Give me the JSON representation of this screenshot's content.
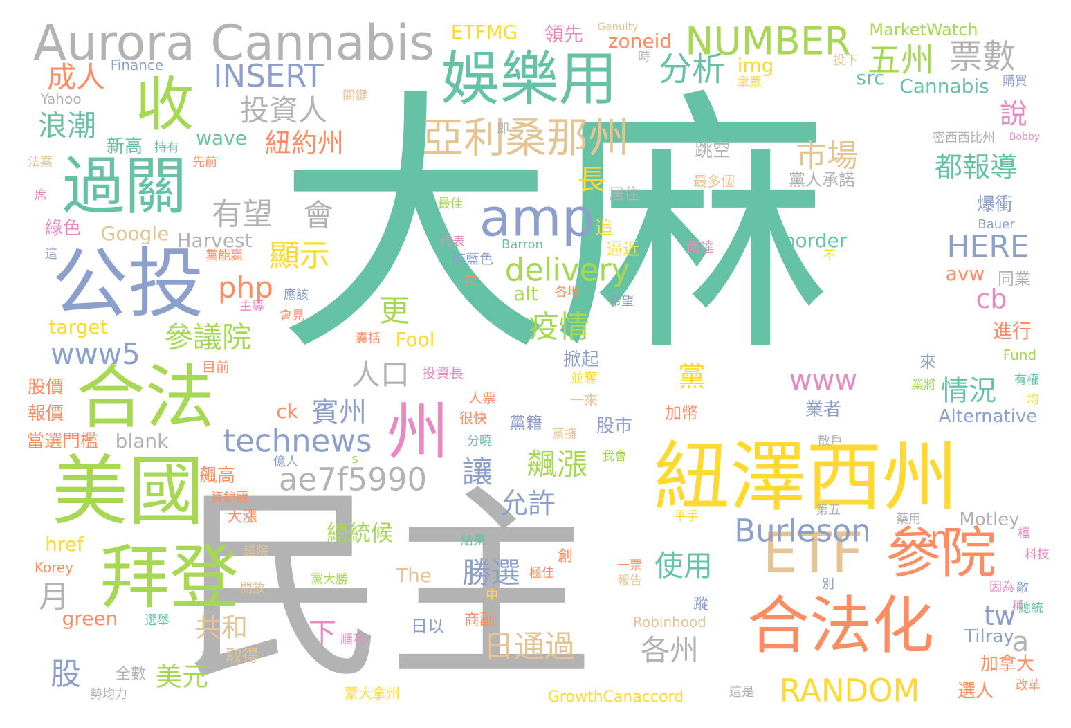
{
  "palette": {
    "teal": "#66c2a5",
    "gray": "#b3b3b3",
    "orange": "#fc8d62",
    "periwinkle": "#8da0cb",
    "green": "#a6d854",
    "yellow": "#ffd92f",
    "tan": "#e5c494",
    "pink": "#e78ac3"
  },
  "words": [
    {
      "text": "大麻",
      "color": "teal"
    },
    {
      "text": "民主",
      "color": "gray"
    },
    {
      "text": "紐澤西州",
      "color": "yellow"
    },
    {
      "text": "合法化",
      "color": "orange"
    },
    {
      "text": "美國",
      "color": "green"
    },
    {
      "text": "公投",
      "color": "periwinkle"
    },
    {
      "text": "拜登",
      "color": "green"
    },
    {
      "text": "合法",
      "color": "green"
    },
    {
      "text": "過關",
      "color": "teal"
    },
    {
      "text": "娛樂用",
      "color": "teal"
    },
    {
      "text": "收",
      "color": "green"
    },
    {
      "text": "amp",
      "color": "periwinkle"
    },
    {
      "text": "州",
      "color": "pink"
    },
    {
      "text": "參院",
      "color": "orange"
    },
    {
      "text": "ETF",
      "color": "tan"
    },
    {
      "text": "Aurora Cannabis",
      "color": "gray"
    },
    {
      "text": "亞利桑那州",
      "color": "tan"
    },
    {
      "text": "NUMBER",
      "color": "green"
    },
    {
      "text": "ae7f5990",
      "color": "gray"
    },
    {
      "text": "technews",
      "color": "periwinkle"
    },
    {
      "text": "delivery",
      "color": "green"
    },
    {
      "text": "Burleson",
      "color": "periwinkle"
    },
    {
      "text": "RANDOM",
      "color": "yellow"
    },
    {
      "text": "INSERT",
      "color": "periwinkle"
    },
    {
      "text": "五州",
      "color": "green"
    },
    {
      "text": "票數",
      "color": "gray"
    },
    {
      "text": "分析",
      "color": "teal"
    },
    {
      "text": "成人",
      "color": "orange"
    },
    {
      "text": "浪潮",
      "color": "teal"
    },
    {
      "text": "投資人",
      "color": "gray"
    },
    {
      "text": "紐約州",
      "color": "orange"
    },
    {
      "text": "市場",
      "color": "tan"
    },
    {
      "text": "都報導",
      "color": "teal"
    },
    {
      "text": "說",
      "color": "pink"
    },
    {
      "text": "長",
      "color": "yellow"
    },
    {
      "text": "有望",
      "color": "gray"
    },
    {
      "text": "會",
      "color": "gray"
    },
    {
      "text": "顯示",
      "color": "yellow"
    },
    {
      "text": "php",
      "color": "orange"
    },
    {
      "text": "參議院",
      "color": "green"
    },
    {
      "text": "www5",
      "color": "periwinkle"
    },
    {
      "text": "更",
      "color": "green"
    },
    {
      "text": "疫情",
      "color": "green"
    },
    {
      "text": "HERE",
      "color": "periwinkle"
    },
    {
      "text": "cb",
      "color": "pink"
    },
    {
      "text": "人口",
      "color": "gray"
    },
    {
      "text": "黨",
      "color": "yellow"
    },
    {
      "text": "www",
      "color": "pink"
    },
    {
      "text": "情況",
      "color": "teal"
    },
    {
      "text": "賓州",
      "color": "periwinkle"
    },
    {
      "text": "飆漲",
      "color": "green"
    },
    {
      "text": "讓",
      "color": "periwinkle"
    },
    {
      "text": "允許",
      "color": "periwinkle"
    },
    {
      "text": "使用",
      "color": "teal"
    },
    {
      "text": "勝選",
      "color": "periwinkle"
    },
    {
      "text": "日通過",
      "color": "tan"
    },
    {
      "text": "各州",
      "color": "gray"
    },
    {
      "text": "共和",
      "color": "tan"
    },
    {
      "text": "美元",
      "color": "green"
    },
    {
      "text": "股",
      "color": "periwinkle"
    },
    {
      "text": "月",
      "color": "gray"
    },
    {
      "text": "n",
      "color": "orange"
    },
    {
      "text": "a",
      "color": "gray"
    },
    {
      "text": "tw",
      "color": "periwinkle"
    },
    {
      "text": "下",
      "color": "pink"
    },
    {
      "text": "總統候",
      "color": "green"
    },
    {
      "text": "ETFMG",
      "color": "yellow"
    },
    {
      "text": "領先",
      "color": "pink"
    },
    {
      "text": "zoneid",
      "color": "orange"
    },
    {
      "text": "img",
      "color": "yellow"
    },
    {
      "text": "src",
      "color": "teal"
    },
    {
      "text": "Cannabis",
      "color": "teal"
    },
    {
      "text": "MarketWatch",
      "color": "green"
    },
    {
      "text": "wave",
      "color": "teal"
    },
    {
      "text": "新高",
      "color": "teal"
    },
    {
      "text": "Google",
      "color": "tan"
    },
    {
      "text": "Harvest",
      "color": "gray"
    },
    {
      "text": "target",
      "color": "yellow"
    },
    {
      "text": "Fool",
      "color": "yellow"
    },
    {
      "text": "border",
      "color": "teal"
    },
    {
      "text": "alt",
      "color": "green"
    },
    {
      "text": "avw",
      "color": "orange"
    },
    {
      "text": "Alternative",
      "color": "periwinkle"
    },
    {
      "text": "Tilray",
      "color": "periwinkle"
    },
    {
      "text": "Motley",
      "color": "gray"
    },
    {
      "text": "blank",
      "color": "gray"
    },
    {
      "text": "ck",
      "color": "orange"
    },
    {
      "text": "href",
      "color": "yellow"
    },
    {
      "text": "green",
      "color": "orange"
    },
    {
      "text": "The",
      "color": "tan"
    },
    {
      "text": "Robinhood",
      "color": "tan"
    },
    {
      "text": "GrowthCanaccord",
      "color": "yellow"
    },
    {
      "text": "Korey",
      "color": "orange"
    },
    {
      "text": "Finance",
      "color": "periwinkle"
    },
    {
      "text": "Yahoo",
      "color": "gray"
    },
    {
      "text": "Genuity",
      "color": "tan"
    },
    {
      "text": "Bobby",
      "color": "pink"
    },
    {
      "text": "Bauer",
      "color": "periwinkle"
    },
    {
      "text": "Barron",
      "color": "teal"
    },
    {
      "text": "Fund",
      "color": "green"
    },
    {
      "text": "跳空",
      "color": "gray"
    },
    {
      "text": "黨人承諾",
      "color": "gray"
    },
    {
      "text": "最多個",
      "color": "tan"
    },
    {
      "text": "爆衝",
      "color": "periwinkle"
    },
    {
      "text": "居住",
      "color": "gray"
    },
    {
      "text": "追",
      "color": "yellow"
    },
    {
      "text": "逼近",
      "color": "yellow"
    },
    {
      "text": "掀起",
      "color": "periwinkle"
    },
    {
      "text": "股市",
      "color": "periwinkle"
    },
    {
      "text": "黨籍",
      "color": "periwinkle"
    },
    {
      "text": "業者",
      "color": "periwinkle"
    },
    {
      "text": "加幣",
      "color": "orange"
    },
    {
      "text": "進行",
      "color": "orange"
    },
    {
      "text": "來",
      "color": "periwinkle"
    },
    {
      "text": "同業",
      "color": "gray"
    },
    {
      "text": "南達",
      "color": "pink"
    },
    {
      "text": "並奪",
      "color": "yellow"
    },
    {
      "text": "一來",
      "color": "tan"
    },
    {
      "text": "純藍色",
      "color": "periwinkle"
    },
    {
      "text": "只",
      "color": "orange"
    },
    {
      "text": "各地",
      "color": "orange"
    },
    {
      "text": "希望",
      "color": "periwinkle"
    },
    {
      "text": "代表",
      "color": "pink"
    },
    {
      "text": "最佳",
      "color": "green"
    },
    {
      "text": "先前",
      "color": "orange"
    },
    {
      "text": "持有",
      "color": "teal"
    },
    {
      "text": "法案",
      "color": "tan"
    },
    {
      "text": "綠色",
      "color": "pink"
    },
    {
      "text": "股價",
      "color": "orange"
    },
    {
      "text": "報價",
      "color": "orange"
    },
    {
      "text": "當選門檻",
      "color": "orange"
    },
    {
      "text": "目前",
      "color": "orange"
    },
    {
      "text": "投資長",
      "color": "pink"
    },
    {
      "text": "人票",
      "color": "orange"
    },
    {
      "text": "很快",
      "color": "orange"
    },
    {
      "text": "分曉",
      "color": "teal"
    },
    {
      "text": "億人",
      "color": "periwinkle"
    },
    {
      "text": "我會",
      "color": "green"
    },
    {
      "text": "飆高",
      "color": "orange"
    },
    {
      "text": "資錦麗",
      "color": "orange"
    },
    {
      "text": "大漲",
      "color": "orange"
    },
    {
      "text": "議院",
      "color": "tan"
    },
    {
      "text": "開放",
      "color": "tan"
    },
    {
      "text": "選舉",
      "color": "teal"
    },
    {
      "text": "全數",
      "color": "gray"
    },
    {
      "text": "勢均力",
      "color": "gray"
    },
    {
      "text": "取得",
      "color": "tan"
    },
    {
      "text": "蒙大拿州",
      "color": "yellow"
    },
    {
      "text": "順利",
      "color": "pink"
    },
    {
      "text": "日以",
      "color": "periwinkle"
    },
    {
      "text": "商副",
      "color": "orange"
    },
    {
      "text": "結果",
      "color": "teal"
    },
    {
      "text": "黨大勝",
      "color": "green"
    },
    {
      "text": "極佳",
      "color": "orange"
    },
    {
      "text": "一票",
      "color": "orange"
    },
    {
      "text": "蹤",
      "color": "periwinkle"
    },
    {
      "text": "第五",
      "color": "gray"
    },
    {
      "text": "藥用",
      "color": "gray"
    },
    {
      "text": "選人",
      "color": "orange"
    },
    {
      "text": "加拿大",
      "color": "orange"
    },
    {
      "text": "改革",
      "color": "orange"
    },
    {
      "text": "這是",
      "color": "gray"
    },
    {
      "text": "科技",
      "color": "pink"
    },
    {
      "text": "敵",
      "color": "periwinkle"
    },
    {
      "text": "因為",
      "color": "pink"
    },
    {
      "text": "別",
      "color": "periwinkle"
    },
    {
      "text": "密西西比州",
      "color": "gray"
    },
    {
      "text": "購買",
      "color": "periwinkle"
    },
    {
      "text": "投下",
      "color": "tan"
    },
    {
      "text": "關鍵",
      "color": "tan"
    },
    {
      "text": "時",
      "color": "gray"
    },
    {
      "text": "應該",
      "color": "periwinkle"
    },
    {
      "text": "主導",
      "color": "pink"
    },
    {
      "text": "會見",
      "color": "orange"
    },
    {
      "text": "囊括",
      "color": "orange"
    },
    {
      "text": "有權",
      "color": "teal"
    },
    {
      "text": "業將",
      "color": "green"
    },
    {
      "text": "均",
      "color": "yellow"
    },
    {
      "text": "掌眾",
      "color": "yellow"
    },
    {
      "text": "黨能贏",
      "color": "orange"
    },
    {
      "text": "平手",
      "color": "yellow"
    },
    {
      "text": "總統",
      "color": "teal"
    },
    {
      "text": "稱",
      "color": "pink"
    },
    {
      "text": "中",
      "color": "yellow"
    },
    {
      "text": "散戶",
      "color": "gray"
    },
    {
      "text": "不",
      "color": "yellow"
    },
    {
      "text": "即",
      "color": "gray"
    },
    {
      "text": "席",
      "color": "pink"
    },
    {
      "text": "這",
      "color": "periwinkle"
    },
    {
      "text": "s",
      "color": "green"
    },
    {
      "text": "黨擁",
      "color": "tan"
    },
    {
      "text": "檔",
      "color": "pink"
    },
    {
      "text": "報告",
      "color": "tan"
    },
    {
      "text": "創",
      "color": "orange"
    }
  ]
}
